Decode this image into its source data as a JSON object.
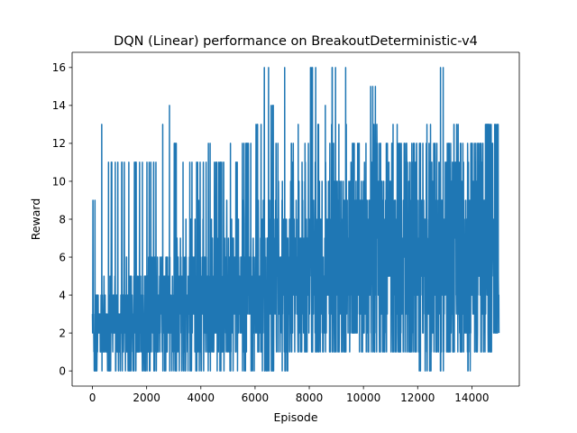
{
  "chart_data": {
    "type": "line",
    "title": "DQN (Linear) performance on BreakoutDeterministic-v4",
    "xlabel": "Episode",
    "ylabel": "Reward",
    "xlim": [
      -750,
      15750
    ],
    "ylim": [
      -0.8,
      16.8
    ],
    "xticks": [
      0,
      2000,
      4000,
      6000,
      8000,
      10000,
      12000,
      14000
    ],
    "yticks": [
      0,
      2,
      4,
      6,
      8,
      10,
      12,
      14,
      16
    ],
    "grid": false,
    "legend": "none",
    "line_color": "#1f77b4",
    "series": [
      {
        "name": "",
        "episode_range": [
          0,
          15000
        ],
        "bin_width": 250,
        "x": [
          0,
          250,
          500,
          750,
          1000,
          1250,
          1500,
          1750,
          2000,
          2250,
          2500,
          2750,
          3000,
          3250,
          3500,
          3750,
          4000,
          4250,
          4500,
          4750,
          5000,
          5250,
          5500,
          5750,
          6000,
          6250,
          6500,
          6750,
          7000,
          7250,
          7500,
          7750,
          8000,
          8250,
          8500,
          8750,
          9000,
          9250,
          9500,
          9750,
          10000,
          10250,
          10500,
          10750,
          11000,
          11250,
          11500,
          11750,
          12000,
          12250,
          12500,
          12750,
          13000,
          13250,
          13500,
          13750,
          14000,
          14250,
          14500,
          14750
        ],
        "max": [
          9,
          13,
          11,
          11,
          11,
          11,
          11,
          11,
          11,
          11,
          13,
          14,
          12,
          11,
          11,
          11,
          11,
          12,
          11,
          11,
          12,
          11,
          12,
          12,
          13,
          16,
          14,
          12,
          16,
          12,
          13,
          12,
          16,
          13,
          14,
          16,
          13,
          16,
          12,
          12,
          12,
          15,
          12,
          12,
          13,
          12,
          12,
          12,
          12,
          13,
          12,
          16,
          12,
          13,
          12,
          12,
          12,
          12,
          13,
          13
        ],
        "min": [
          0,
          0,
          0,
          0,
          0,
          0,
          0,
          0,
          0,
          0,
          0,
          0,
          0,
          0,
          0,
          0,
          0,
          0,
          0,
          0,
          0,
          0,
          0,
          0,
          1,
          0,
          0,
          1,
          0,
          1,
          1,
          1,
          1,
          1,
          1,
          1,
          1,
          1,
          2,
          1,
          1,
          1,
          1,
          1,
          1,
          1,
          1,
          1,
          0,
          0,
          1,
          0,
          1,
          1,
          1,
          0,
          1,
          1,
          1,
          2
        ]
      }
    ]
  }
}
